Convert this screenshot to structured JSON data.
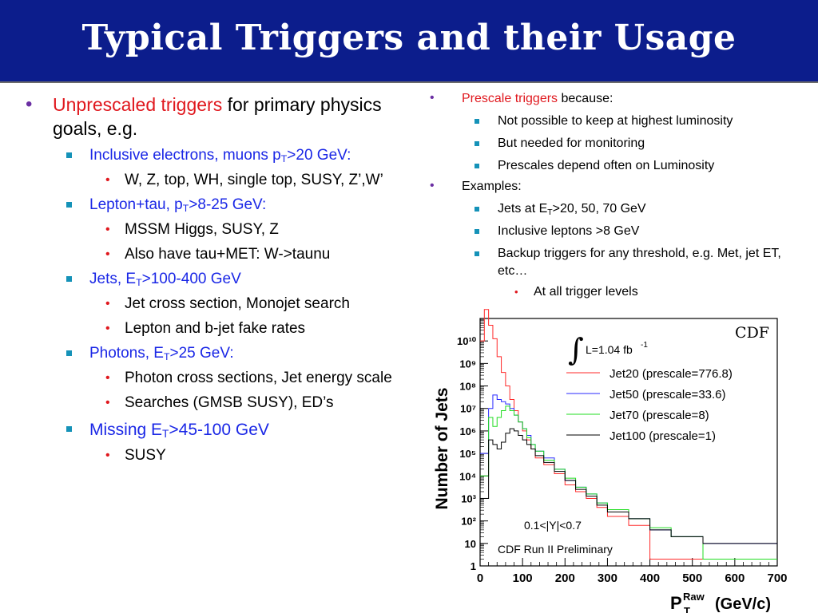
{
  "slide": {
    "title": "Typical Triggers and their Usage",
    "left": {
      "intro_red": "Unprescaled triggers",
      "intro_rest": " for primary physics goals, e.g.",
      "items": [
        {
          "pre": "Inclusive electrons, muons p",
          "sub": "T",
          "post": ">20 GeV:",
          "children": [
            "W, Z, top, WH, single top, SUSY, Z’,W’"
          ]
        },
        {
          "pre": "Lepton+tau, p",
          "sub": "T",
          "post": ">8-25 GeV:",
          "children": [
            "MSSM Higgs, SUSY, Z",
            "Also have tau+MET: W->taunu"
          ]
        },
        {
          "pre": "Jets, E",
          "sub": "T",
          "post": ">100-400 GeV",
          "children": [
            "Jet cross section, Monojet search",
            "Lepton and b-jet fake rates"
          ]
        },
        {
          "pre": "Photons, E",
          "sub": "T",
          "post": ">25 GeV:",
          "children": [
            "Photon cross sections, Jet energy scale",
            "Searches (GMSB SUSY), ED’s"
          ]
        },
        {
          "pre": "Missing E",
          "sub": "T",
          "post": ">45-100 GeV",
          "children": [
            "SUSY"
          ]
        }
      ]
    },
    "right": {
      "prescale_red": "Prescale triggers",
      "prescale_rest": " because:",
      "reasons": [
        "Not possible to keep at highest luminosity",
        "But needed for monitoring",
        "Prescales depend often on Luminosity"
      ],
      "examples_label": "Examples:",
      "ex1_pre": "Jets at E",
      "ex1_sub": "T",
      "ex1_post": ">20, 50, 70 GeV",
      "ex2": "Inclusive leptons >8 GeV",
      "ex3": "Backup triggers for any threshold, e.g. Met, jet ET, etc…",
      "ex3_child": "At all trigger levels"
    }
  },
  "chart_data": {
    "type": "line",
    "step": true,
    "ylog": true,
    "xlim": [
      0,
      700
    ],
    "ylim": [
      1,
      100000000000
    ],
    "x_ticks": [
      0,
      100,
      200,
      300,
      400,
      500,
      600,
      700
    ],
    "y_ticks": [
      "1",
      "10",
      "10²",
      "10³",
      "10⁴",
      "10⁵",
      "10⁶",
      "10⁷",
      "10⁸",
      "10⁹",
      "10¹⁰"
    ],
    "ylabel": "Number of Jets",
    "xlabel_main": "P",
    "xlabel_sup": "Raw",
    "xlabel_sub": "T",
    "xlabel_unit": "(GeV/c)",
    "corner_label": "CDF",
    "lumi_label": "L=1.04 fb",
    "lumi_sup": "-1",
    "rapidity_label": "0.1<|Y|<0.7",
    "prelim_label": "CDF Run II Preliminary",
    "series": [
      {
        "name": "Jet20 (prescale=776.8)",
        "color": "#ff2a2a",
        "points": [
          [
            0,
            10
          ],
          [
            10,
            11.4
          ],
          [
            20,
            10.7
          ],
          [
            30,
            10.1
          ],
          [
            40,
            9.3
          ],
          [
            50,
            8.6
          ],
          [
            60,
            8.0
          ],
          [
            70,
            7.4
          ],
          [
            80,
            6.9
          ],
          [
            90,
            6.4
          ],
          [
            100,
            6.0
          ],
          [
            110,
            5.6
          ],
          [
            120,
            5.2
          ],
          [
            130,
            4.8
          ],
          [
            150,
            4.5
          ],
          [
            175,
            4.1
          ],
          [
            200,
            3.6
          ],
          [
            225,
            3.3
          ],
          [
            250,
            3.0
          ],
          [
            275,
            2.6
          ],
          [
            300,
            2.2
          ],
          [
            350,
            1.8
          ],
          [
            400,
            0.3
          ]
        ]
      },
      {
        "name": "Jet50 (prescale=33.6)",
        "color": "#2a2aff",
        "points": [
          [
            0,
            5
          ],
          [
            20,
            7.0
          ],
          [
            30,
            7.6
          ],
          [
            40,
            7.4
          ],
          [
            50,
            7.3
          ],
          [
            60,
            7.2
          ],
          [
            70,
            7.0
          ],
          [
            80,
            6.7
          ],
          [
            90,
            6.4
          ],
          [
            100,
            6.1
          ],
          [
            110,
            5.8
          ],
          [
            120,
            5.4
          ],
          [
            130,
            5.1
          ],
          [
            150,
            4.8
          ],
          [
            175,
            4.3
          ],
          [
            200,
            3.8
          ],
          [
            225,
            3.5
          ],
          [
            250,
            3.2
          ],
          [
            275,
            2.8
          ],
          [
            300,
            2.5
          ],
          [
            350,
            2.1
          ],
          [
            400,
            1.6
          ],
          [
            450,
            1.3
          ],
          [
            525,
            1.0
          ],
          [
            700,
            0.82
          ]
        ]
      },
      {
        "name": "Jet70 (prescale=8)",
        "color": "#22dd22",
        "points": [
          [
            0,
            4
          ],
          [
            20,
            6.6
          ],
          [
            30,
            6.2
          ],
          [
            40,
            6.6
          ],
          [
            50,
            6.9
          ],
          [
            60,
            7.1
          ],
          [
            70,
            6.9
          ],
          [
            80,
            6.7
          ],
          [
            90,
            6.4
          ],
          [
            100,
            6.1
          ],
          [
            110,
            5.7
          ],
          [
            120,
            5.4
          ],
          [
            130,
            5.1
          ],
          [
            150,
            4.7
          ],
          [
            175,
            4.3
          ],
          [
            200,
            3.9
          ],
          [
            225,
            3.5
          ],
          [
            250,
            3.2
          ],
          [
            275,
            2.8
          ],
          [
            300,
            2.5
          ],
          [
            350,
            2.1
          ],
          [
            400,
            1.7
          ],
          [
            450,
            1.3
          ],
          [
            525,
            0.3
          ]
        ]
      },
      {
        "name": "Jet100 (prescale=1)",
        "color": "#000000",
        "points": [
          [
            0,
            3
          ],
          [
            20,
            5.6
          ],
          [
            30,
            5.4
          ],
          [
            40,
            5.2
          ],
          [
            50,
            5.5
          ],
          [
            60,
            5.9
          ],
          [
            70,
            6.1
          ],
          [
            80,
            6.0
          ],
          [
            90,
            5.8
          ],
          [
            100,
            5.6
          ],
          [
            110,
            5.4
          ],
          [
            120,
            5.2
          ],
          [
            130,
            4.9
          ],
          [
            150,
            4.6
          ],
          [
            175,
            4.2
          ],
          [
            200,
            3.8
          ],
          [
            225,
            3.4
          ],
          [
            250,
            3.1
          ],
          [
            275,
            2.7
          ],
          [
            300,
            2.4
          ],
          [
            350,
            2.1
          ],
          [
            400,
            1.6
          ],
          [
            450,
            1.3
          ],
          [
            525,
            1.0
          ],
          [
            700,
            0.5
          ]
        ]
      }
    ]
  }
}
